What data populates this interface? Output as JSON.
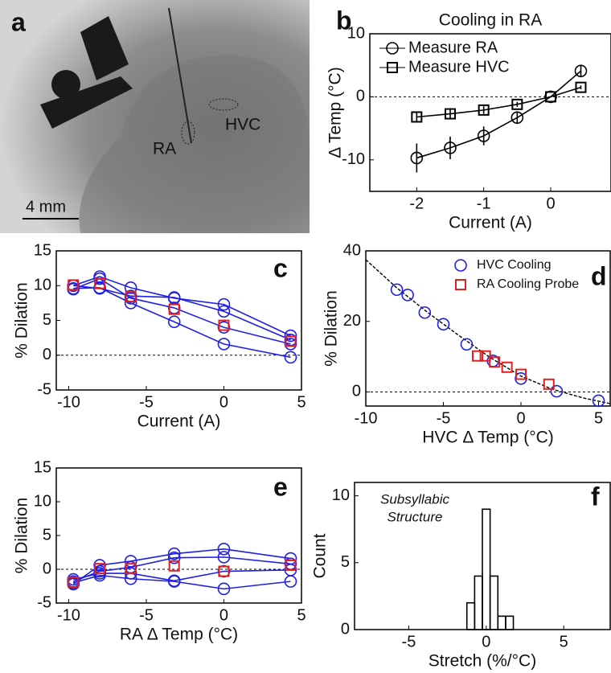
{
  "chart_data": [
    {
      "type": "image",
      "panel": "a",
      "labels": [
        "RA",
        "HVC"
      ],
      "scale_bar": "4 mm"
    },
    {
      "type": "line",
      "panel": "b",
      "title": "Cooling in RA",
      "xlabel": "Current (A)",
      "ylabel": "Δ Temp (°C)",
      "x": [
        -2,
        -1.5,
        -1,
        -0.5,
        0,
        0.45
      ],
      "xlim": [
        -2.7,
        0.9
      ],
      "ylim": [
        -15,
        10
      ],
      "xticks": [
        -2,
        -1,
        0
      ],
      "yticks": [
        -10,
        0,
        10
      ],
      "reference_line": 0,
      "legend": "upper left",
      "series": [
        {
          "name": "Measure RA",
          "color": "#000000",
          "marker": "circle",
          "values": [
            -9.7,
            -8.1,
            -6.2,
            -3.3,
            0,
            4.1
          ],
          "errors": [
            2.3,
            1.8,
            1.5,
            1.0,
            0,
            1.0
          ]
        },
        {
          "name": "Measure HVC",
          "color": "#000000",
          "marker": "square",
          "values": [
            -3.2,
            -2.7,
            -2.1,
            -1.2,
            0,
            1.5
          ],
          "errors": [
            0.7,
            0.7,
            0.6,
            0.4,
            0,
            0.3
          ]
        }
      ]
    },
    {
      "type": "line",
      "panel": "c",
      "xlabel": "Current (A)",
      "ylabel": "% Dilation",
      "x": [
        -9.7,
        -8,
        -6,
        -3.2,
        0,
        4.3
      ],
      "xlim": [
        -10.8,
        5
      ],
      "ylim": [
        -5,
        15
      ],
      "xticks": [
        -10,
        -5,
        0,
        5
      ],
      "yticks": [
        -5,
        0,
        5,
        10,
        15
      ],
      "reference_line": 0,
      "series": [
        {
          "color": "#1f1fe6",
          "marker": "circle",
          "values": [
            10,
            11.3,
            9.7,
            8.2,
            7.3,
            2.8
          ]
        },
        {
          "color": "#1f1fe6",
          "marker": "circle",
          "values": [
            10,
            9.6,
            8.5,
            8.3,
            6.3,
            2.2
          ]
        },
        {
          "color": "#1f1fe6",
          "marker": "circle",
          "values": [
            9.5,
            11,
            8.2,
            6.8,
            4,
            1.6
          ]
        },
        {
          "color": "#1f1fe6",
          "marker": "circle",
          "values": [
            9.6,
            9.7,
            7.5,
            4.8,
            1.6,
            -0.3
          ]
        },
        {
          "color": "#e02020",
          "marker": "square",
          "line": false,
          "values": [
            10.1,
            10.3,
            8.4,
            6.6,
            4.3,
            2.0
          ]
        }
      ]
    },
    {
      "type": "scatter",
      "panel": "d",
      "xlabel": "HVC Δ Temp (°C)",
      "ylabel": "% Dilation",
      "xlim": [
        -10,
        5.75
      ],
      "ylim": [
        -4,
        40
      ],
      "xticks": [
        -10,
        -5,
        0,
        5
      ],
      "yticks": [
        0,
        20,
        40
      ],
      "reference_line": 0,
      "legend": "upper right",
      "series": [
        {
          "style": "dashed",
          "color": "#000000",
          "x": [
            -10,
            -8,
            -6,
            -4,
            -2,
            0,
            2,
            4,
            5.75
          ],
          "values": [
            37.5,
            29.5,
            22.5,
            16,
            9.8,
            4.5,
            0.8,
            -1.7,
            -3.3
          ]
        },
        {
          "name": "HVC Cooling",
          "color": "#1f1fe6",
          "marker": "circle",
          "x": [
            -8,
            -7.3,
            -6.2,
            -5,
            -3.5,
            -1.8,
            0,
            2.3,
            5
          ],
          "values": [
            29,
            27.5,
            22.5,
            19.2,
            13.5,
            8.8,
            3.8,
            0.2,
            -2.5
          ]
        },
        {
          "name": "RA Cooling Probe",
          "color": "#e02020",
          "marker": "square",
          "x": [
            -2.8,
            -2.3,
            -1.7,
            -0.9,
            0,
            1.8
          ],
          "values": [
            10.2,
            10.2,
            8.5,
            7,
            5,
            2.2
          ]
        }
      ]
    },
    {
      "type": "line",
      "panel": "e",
      "xlabel": "RA Δ Temp (°C)",
      "ylabel": "% Dilation",
      "x": [
        -9.7,
        -8,
        -6,
        -3.2,
        0,
        4.3
      ],
      "xlim": [
        -10.8,
        5
      ],
      "ylim": [
        -5,
        15
      ],
      "xticks": [
        -10,
        -5,
        0,
        5
      ],
      "yticks": [
        -5,
        0,
        5,
        10,
        15
      ],
      "reference_line": 0,
      "series": [
        {
          "color": "#1f1fe6",
          "marker": "circle",
          "values": [
            -2.2,
            0.6,
            1.2,
            2.3,
            3.0,
            1.6
          ]
        },
        {
          "color": "#1f1fe6",
          "marker": "circle",
          "values": [
            -1.8,
            -0.3,
            0.3,
            1.7,
            1.8,
            0.8
          ]
        },
        {
          "color": "#1f1fe6",
          "marker": "circle",
          "values": [
            -1.5,
            -0.6,
            -0.6,
            -1.7,
            -0.3,
            -0.1
          ]
        },
        {
          "color": "#1f1fe6",
          "marker": "circle",
          "values": [
            -2.0,
            -0.9,
            -1.4,
            -1.8,
            -2.9,
            -1.8
          ]
        },
        {
          "color": "#e02020",
          "marker": "square",
          "line": false,
          "values": [
            -1.9,
            0.1,
            0.1,
            0.5,
            -0.3,
            0.6
          ]
        }
      ]
    },
    {
      "type": "histogram",
      "panel": "f",
      "xlabel": "Stretch (%/°C)",
      "ylabel": "Count",
      "annotation": [
        "Subsyllabic",
        "Structure"
      ],
      "bins": [
        -1.25,
        -0.75,
        -0.25,
        0.25,
        0.75,
        1.25,
        1.75
      ],
      "counts": [
        2,
        4,
        9,
        4,
        1,
        1
      ],
      "xlim": [
        -8.5,
        8
      ],
      "ylim": [
        0,
        11
      ],
      "xticks": [
        -5,
        0,
        5
      ],
      "yticks": [
        0,
        5,
        10
      ],
      "color": "#000000"
    }
  ]
}
